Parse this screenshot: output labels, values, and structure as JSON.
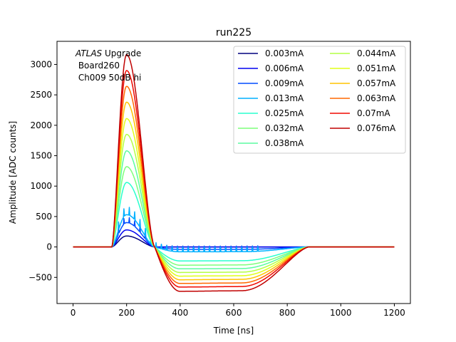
{
  "chart_data": {
    "type": "line",
    "title": "run225",
    "xlabel": "Time [ns]",
    "ylabel": "Amplitude [ADC counts]",
    "xlim": [
      -60,
      1260
    ],
    "ylim": [
      -930,
      3380
    ],
    "xticks": [
      0,
      200,
      400,
      600,
      800,
      1000,
      1200
    ],
    "yticks": [
      -500,
      0,
      500,
      1000,
      1500,
      2000,
      2500,
      3000
    ],
    "ytick_labels": [
      "−500",
      "0",
      "500",
      "1000",
      "1500",
      "2000",
      "2500",
      "3000"
    ],
    "grid": false,
    "legend_placement": "upper-right",
    "legend_columns": 2,
    "annotation": {
      "italic_part": "ATLAS",
      "line1_rest": " Upgrade",
      "line2": " Board260",
      "line3": " Ch009 50dB hi"
    },
    "series": [
      {
        "name": "0.003mA",
        "color": "#00007f",
        "peak": 180,
        "undershoot": 0,
        "spike": 0
      },
      {
        "name": "0.006mA",
        "color": "#0000f1",
        "peak": 280,
        "undershoot": 0,
        "spike": 0
      },
      {
        "name": "0.009mA",
        "color": "#004cff",
        "peak": 400,
        "undershoot": -40,
        "spike": 1
      },
      {
        "name": "0.013mA",
        "color": "#00b0ff",
        "peak": 530,
        "undershoot": -80,
        "spike": 1
      },
      {
        "name": "0.025mA",
        "color": "#29ffce",
        "peak": 1060,
        "undershoot": -230,
        "spike": 0
      },
      {
        "name": "0.032mA",
        "color": "#7dff7a",
        "peak": 1320,
        "undershoot": -300,
        "spike": 0
      },
      {
        "name": "0.038mA",
        "color": "#5bfca0",
        "peak": 1580,
        "undershoot": -360,
        "spike": 0
      },
      {
        "name": "0.044mA",
        "color": "#b4ff43",
        "peak": 1850,
        "undershoot": -420,
        "spike": 0
      },
      {
        "name": "0.051mA",
        "color": "#e0ff17",
        "peak": 2110,
        "undershoot": -480,
        "spike": 0
      },
      {
        "name": "0.057mA",
        "color": "#ffc400",
        "peak": 2380,
        "undershoot": -540,
        "spike": 0
      },
      {
        "name": "0.063mA",
        "color": "#ff6800",
        "peak": 2640,
        "undershoot": -600,
        "spike": 0
      },
      {
        "name": "0.07mA",
        "color": "#f10800",
        "peak": 2900,
        "undershoot": -660,
        "spike": 0
      },
      {
        "name": "0.076mA",
        "color": "#c00000",
        "peak": 3160,
        "undershoot": -730,
        "spike": 0
      }
    ]
  }
}
